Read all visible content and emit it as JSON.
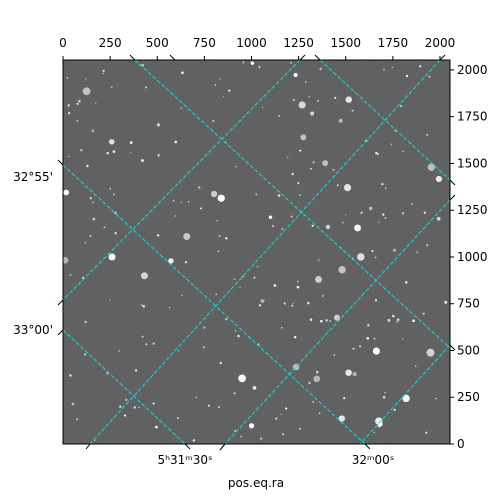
{
  "chart_data": {
    "type": "image",
    "xlabel": "pos.eq.ra",
    "xlim": [
      0,
      2053
    ],
    "ylim": [
      0,
      2053
    ],
    "xticks": [
      0,
      250,
      500,
      750,
      1000,
      1250,
      1500,
      1750,
      2000
    ],
    "yticks": [
      0,
      250,
      500,
      750,
      1000,
      1250,
      1500,
      1750,
      2000
    ],
    "ra_labels": [
      "5ʰ31ᵐ30ˢ",
      "32ᵐ00ˢ"
    ],
    "dec_labels": [
      "32°55'",
      "33°00'"
    ]
  }
}
